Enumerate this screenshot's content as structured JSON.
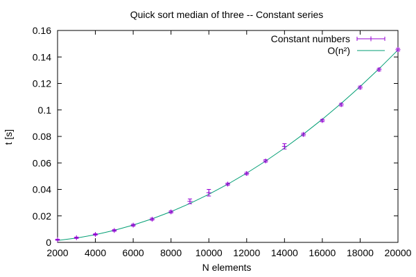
{
  "chart_data": {
    "type": "line",
    "title": "Quick sort median of three -- Constant series",
    "xlabel": "N elements",
    "ylabel": "t [s]",
    "xlim": [
      2000,
      20000
    ],
    "ylim": [
      0,
      0.16
    ],
    "x_ticks": [
      "2000",
      "4000",
      "6000",
      "8000",
      "10000",
      "12000",
      "14000",
      "16000",
      "18000",
      "20000"
    ],
    "y_ticks": [
      "0",
      "0.02",
      "0.04",
      "0.06",
      "0.08",
      "0.1",
      "0.12",
      "0.14",
      "0.16"
    ],
    "grid": false,
    "legend_position": "top-right",
    "series": [
      {
        "name": "Constant numbers",
        "style": "points-with-errorbars",
        "color": "#9400d3",
        "x": [
          2000,
          3000,
          4000,
          5000,
          6000,
          7000,
          8000,
          9000,
          10000,
          11000,
          12000,
          13000,
          14000,
          15000,
          16000,
          17000,
          18000,
          19000,
          20000
        ],
        "y": [
          0.002,
          0.0035,
          0.006,
          0.009,
          0.013,
          0.0175,
          0.023,
          0.031,
          0.0375,
          0.044,
          0.052,
          0.0615,
          0.0725,
          0.0815,
          0.092,
          0.104,
          0.117,
          0.1305,
          0.1455
        ],
        "err": [
          0.0004,
          0.0005,
          0.0006,
          0.0006,
          0.0007,
          0.0008,
          0.0008,
          0.0018,
          0.0025,
          0.0008,
          0.0009,
          0.0009,
          0.002,
          0.001,
          0.0009,
          0.001,
          0.001,
          0.001,
          0.001
        ]
      },
      {
        "name": "O(n²)",
        "style": "line",
        "color": "#009e73",
        "x": [
          2000,
          3000,
          4000,
          5000,
          6000,
          7000,
          8000,
          9000,
          10000,
          11000,
          12000,
          13000,
          14000,
          15000,
          16000,
          17000,
          18000,
          19000,
          20000
        ],
        "y": [
          0.00145,
          0.00327,
          0.00581,
          0.00908,
          0.01307,
          0.01779,
          0.02324,
          0.02941,
          0.03631,
          0.04394,
          0.05229,
          0.06136,
          0.07117,
          0.0817,
          0.09295,
          0.10494,
          0.11765,
          0.13108,
          0.14524
        ]
      }
    ]
  }
}
